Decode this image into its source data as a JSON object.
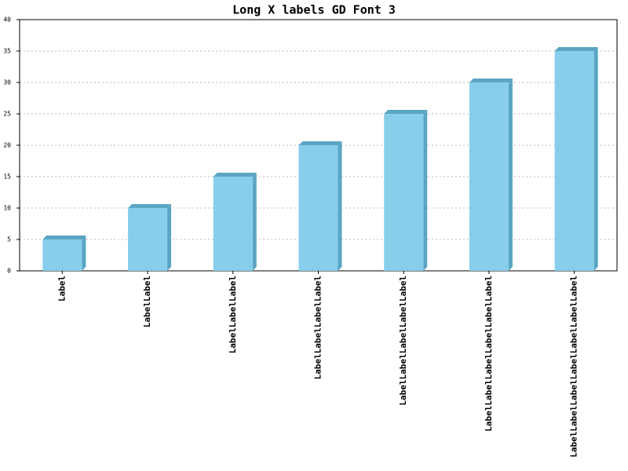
{
  "chart_data": {
    "type": "bar",
    "title": "Long X labels GD Font 3",
    "categories": [
      "Label",
      "LabelLabel",
      "LabelLabelLabel",
      "LabelLabelLabelLabel",
      "LabelLabelLabelLabelLabel",
      "LabelLabelLabelLabelLabelLabel",
      "LabelLabelLabelLabelLabelLabelLabel"
    ],
    "values": [
      5,
      10,
      15,
      20,
      25,
      30,
      35
    ],
    "color": "#87ceeb",
    "shade_color": "#5aa5c4",
    "ylim": [
      0,
      40
    ],
    "yticks": [
      0,
      5,
      10,
      15,
      20,
      25,
      30,
      35,
      40
    ],
    "grid": true
  }
}
